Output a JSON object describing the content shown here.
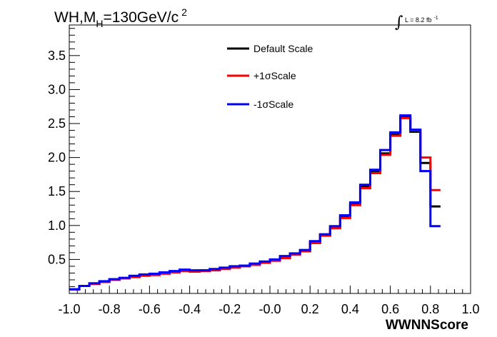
{
  "chart_data": {
    "type": "histogram",
    "title": {
      "prefix": "WH,M",
      "subscript": "H",
      "main": "=130GeV/c",
      "superscript": "2"
    },
    "annotation": {
      "integral_sign": "∫",
      "text": "L = 8.2 fb",
      "superscript": "-1"
    },
    "xlabel": "WWNNScore",
    "ylabel": "",
    "xlim": [
      -1.0,
      1.0
    ],
    "ylim": [
      0.0,
      3.95
    ],
    "x_ticks": [
      "-1.0",
      "-0.8",
      "-0.6",
      "-0.4",
      "-0.2",
      "-0.0",
      "0.2",
      "0.4",
      "0.6",
      "0.8",
      "1.0"
    ],
    "y_ticks": [
      "0.5",
      "1.0",
      "1.5",
      "2.0",
      "2.5",
      "3.0",
      "3.5"
    ],
    "bin_edges_start": -1.0,
    "bin_width": 0.05,
    "legend_position": "top-center",
    "series": [
      {
        "name": "Default Scale",
        "color": "#000000",
        "values": [
          0.06,
          0.11,
          0.14,
          0.17,
          0.2,
          0.22,
          0.25,
          0.27,
          0.28,
          0.3,
          0.32,
          0.34,
          0.33,
          0.34,
          0.35,
          0.37,
          0.39,
          0.4,
          0.43,
          0.46,
          0.49,
          0.53,
          0.58,
          0.63,
          0.75,
          0.86,
          0.98,
          1.13,
          1.32,
          1.57,
          1.79,
          2.06,
          2.34,
          2.59,
          2.38,
          1.92,
          1.28
        ]
      },
      {
        "name": "+1σScale",
        "color": "#ff0000",
        "values": [
          0.06,
          0.11,
          0.14,
          0.17,
          0.2,
          0.22,
          0.24,
          0.26,
          0.27,
          0.29,
          0.31,
          0.33,
          0.32,
          0.33,
          0.34,
          0.36,
          0.38,
          0.4,
          0.42,
          0.45,
          0.48,
          0.52,
          0.57,
          0.62,
          0.74,
          0.85,
          0.96,
          1.11,
          1.3,
          1.55,
          1.77,
          2.04,
          2.32,
          2.58,
          2.4,
          2.0,
          1.52
        ]
      },
      {
        "name": "-1σScale",
        "color": "#0000ff",
        "values": [
          0.06,
          0.11,
          0.15,
          0.18,
          0.21,
          0.23,
          0.26,
          0.28,
          0.29,
          0.31,
          0.33,
          0.35,
          0.34,
          0.34,
          0.36,
          0.38,
          0.4,
          0.41,
          0.44,
          0.47,
          0.5,
          0.55,
          0.59,
          0.64,
          0.77,
          0.87,
          0.99,
          1.15,
          1.34,
          1.6,
          1.82,
          2.11,
          2.37,
          2.62,
          2.41,
          1.8,
          0.99
        ]
      }
    ]
  }
}
